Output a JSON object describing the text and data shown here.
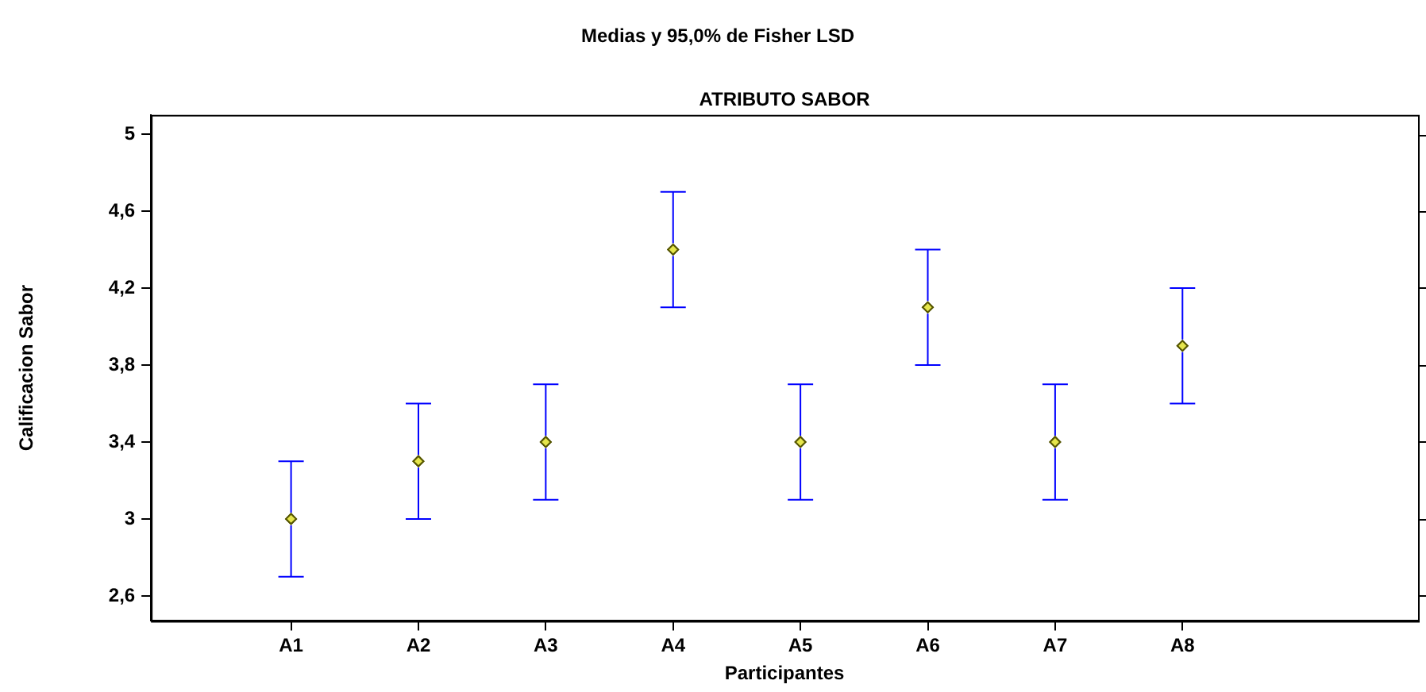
{
  "chart_data": {
    "type": "scatter",
    "title": "Medias y 95,0% de Fisher LSD",
    "subtitle": "ATRIBUTO SABOR",
    "xlabel": "Participantes",
    "ylabel": "Calificacion Sabor",
    "categories": [
      "A1",
      "A2",
      "A3",
      "A4",
      "A5",
      "A6",
      "A7",
      "A8"
    ],
    "series": [
      {
        "color": "#e6e64d",
        "values": [
          3.0,
          3.3,
          3.4,
          4.4,
          3.4,
          4.1,
          3.4,
          3.9
        ],
        "errors": [
          0.3,
          0.3,
          0.3,
          0.3,
          0.3,
          0.3,
          0.3,
          0.3
        ]
      }
    ],
    "ylim": [
      2.47,
      5.1
    ],
    "yticks": [
      {
        "value": 2.6,
        "label": "2,6"
      },
      3,
      {
        "value": 3.4,
        "label": "3,4"
      },
      {
        "value": 3.8,
        "label": "3,8"
      },
      {
        "value": 4.2,
        "label": "4,2"
      },
      {
        "value": 4.6,
        "label": "4,6"
      },
      5
    ],
    "marker": "diamond",
    "grid": false,
    "legend": false
  }
}
